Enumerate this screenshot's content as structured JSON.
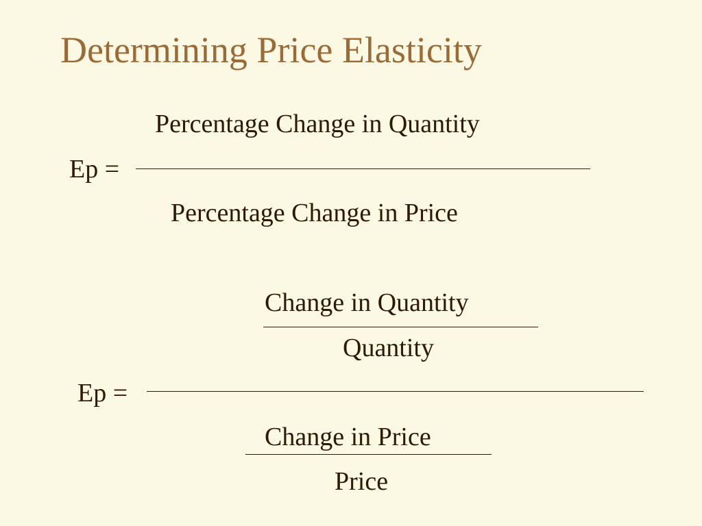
{
  "slide": {
    "title": "Determining Price Elasticity"
  },
  "formula1": {
    "lhs": "Ep =",
    "numerator": "Percentage Change in Quantity",
    "denominator": "Percentage Change in Price"
  },
  "formula2": {
    "lhs": "Ep =",
    "numerator": {
      "numerator": "Change in Quantity",
      "denominator": "Quantity"
    },
    "denominator": {
      "numerator": "Change in Price",
      "denominator": "Price"
    }
  },
  "colors": {
    "background": "#fbf9e3",
    "title": "#9b6a35",
    "text": "#2e1a02"
  }
}
